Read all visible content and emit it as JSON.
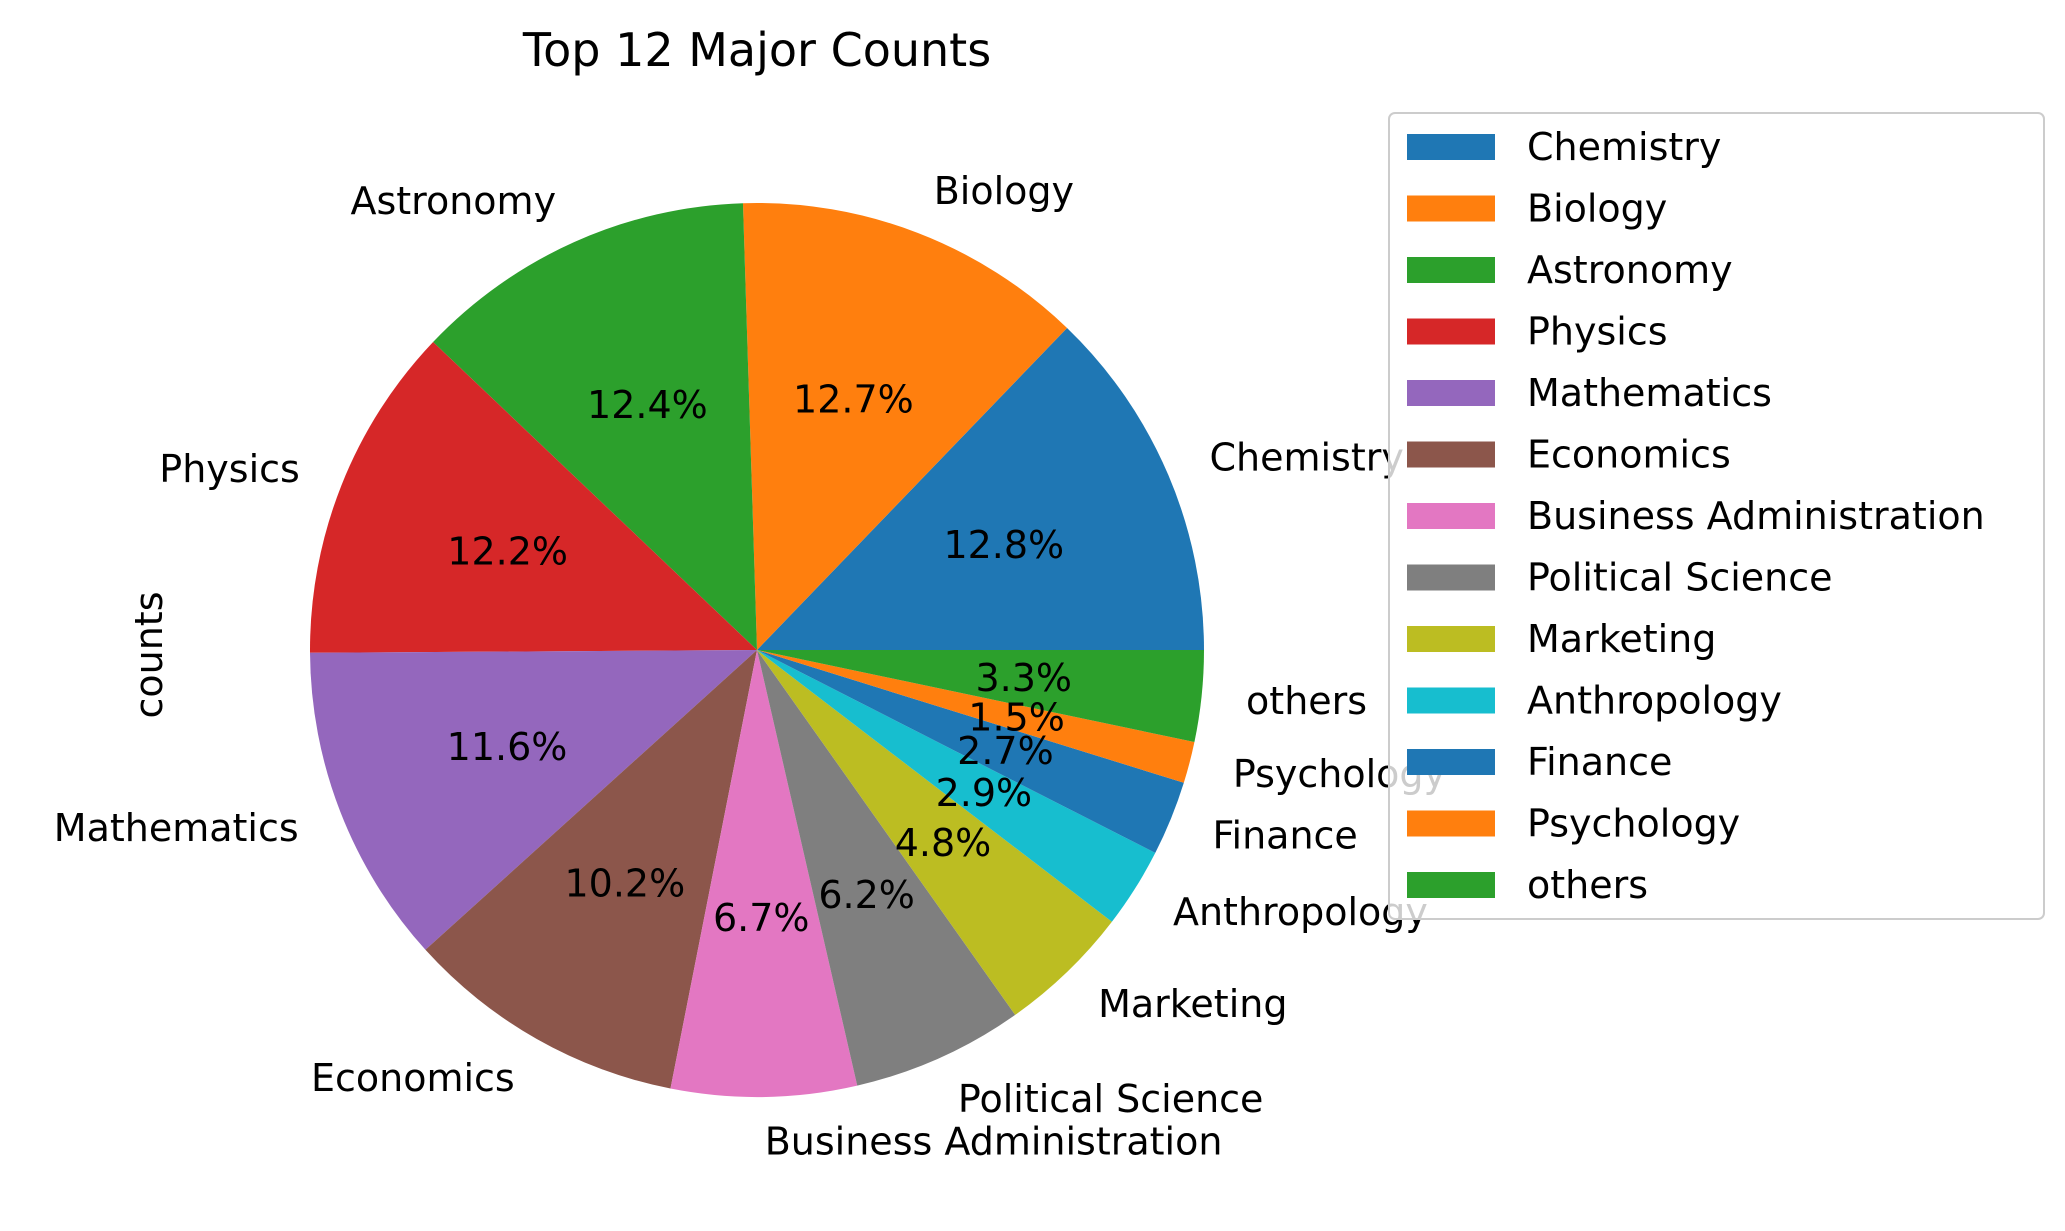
{
  "chart_data": {
    "type": "pie",
    "title": "Top 12 Major Counts",
    "ylabel": "counts",
    "legend_position": "right",
    "start_angle_deg": 0,
    "direction": "counterclockwise",
    "slices": [
      {
        "label": "Chemistry",
        "percent": 12.8,
        "pct_text": "12.8%",
        "color": "#1f77b4"
      },
      {
        "label": "Biology",
        "percent": 12.7,
        "pct_text": "12.7%",
        "color": "#ff7f0e"
      },
      {
        "label": "Astronomy",
        "percent": 12.4,
        "pct_text": "12.4%",
        "color": "#2ca02c"
      },
      {
        "label": "Physics",
        "percent": 12.2,
        "pct_text": "12.2%",
        "color": "#d62728"
      },
      {
        "label": "Mathematics",
        "percent": 11.6,
        "pct_text": "11.6%",
        "color": "#9467bd"
      },
      {
        "label": "Economics",
        "percent": 10.2,
        "pct_text": "10.2%",
        "color": "#8c564b"
      },
      {
        "label": "Business Administration",
        "percent": 6.7,
        "pct_text": "6.7%",
        "color": "#e377c2"
      },
      {
        "label": "Political Science",
        "percent": 6.2,
        "pct_text": "6.2%",
        "color": "#7f7f7f"
      },
      {
        "label": "Marketing",
        "percent": 4.8,
        "pct_text": "4.8%",
        "color": "#bcbd22"
      },
      {
        "label": "Anthropology",
        "percent": 2.9,
        "pct_text": "2.9%",
        "color": "#17becf"
      },
      {
        "label": "Finance",
        "percent": 2.7,
        "pct_text": "2.7%",
        "color": "#1f77b4"
      },
      {
        "label": "Psychology",
        "percent": 1.5,
        "pct_text": "1.5%",
        "color": "#ff7f0e"
      },
      {
        "label": "others",
        "percent": 3.3,
        "pct_text": "3.3%",
        "color": "#2ca02c"
      }
    ]
  }
}
